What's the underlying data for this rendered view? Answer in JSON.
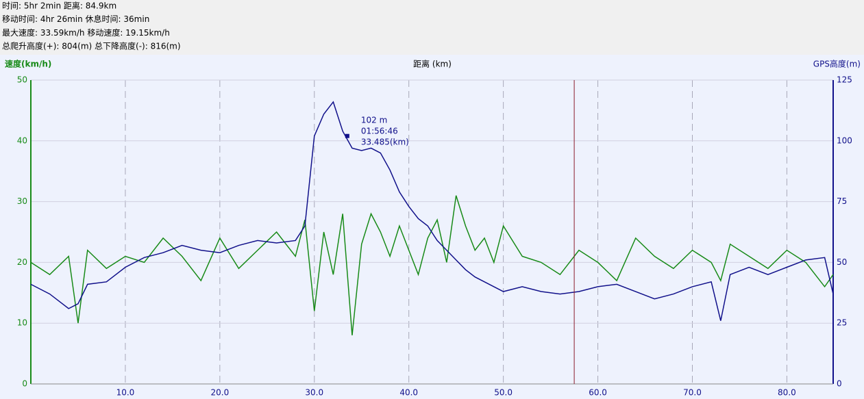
{
  "header": {
    "lines": [
      "时间: 5hr 2min  距离: 84.9km",
      "移动时间: 4hr 26min  休息时间: 36min",
      "最大速度: 33.59km/h  移动速度: 19.15km/h",
      "总爬升高度(+): 804(m)  总下降高度(-): 816(m)"
    ]
  },
  "chart_data": {
    "type": "line",
    "x_label": "距离 (km)",
    "y_label": "速度(km/h)",
    "y2_label": "GPS高度(m)",
    "x": [
      0,
      2,
      4,
      5,
      6,
      8,
      10,
      12,
      14,
      16,
      18,
      20,
      22,
      24,
      26,
      28,
      29,
      30,
      31,
      32,
      33,
      34,
      35,
      36,
      37,
      38,
      39,
      40,
      41,
      42,
      43,
      44,
      45,
      46,
      47,
      48,
      49,
      50,
      52,
      54,
      56,
      58,
      60,
      62,
      64,
      66,
      68,
      70,
      72,
      73,
      74,
      76,
      78,
      80,
      82,
      84,
      84.9
    ],
    "series": [
      {
        "name": "速度(km/h)",
        "color": "#178a17",
        "values": [
          20,
          18,
          21,
          10,
          22,
          19,
          21,
          20,
          24,
          21,
          17,
          24,
          19,
          22,
          25,
          21,
          27,
          12,
          25,
          18,
          28,
          8,
          23,
          28,
          25,
          21,
          26,
          22,
          18,
          24,
          27,
          20,
          31,
          26,
          22,
          24,
          20,
          26,
          21,
          20,
          18,
          22,
          20,
          17,
          24,
          21,
          19,
          22,
          20,
          17,
          23,
          21,
          19,
          22,
          20,
          16,
          18
        ]
      },
      {
        "name": "GPS高度(m)",
        "color": "#10108a",
        "axis": "y2",
        "values": [
          41,
          37,
          31,
          33,
          41,
          42,
          48,
          52,
          54,
          57,
          55,
          54,
          57,
          59,
          58,
          59,
          65,
          102,
          111,
          116,
          104,
          97,
          96,
          97,
          95,
          88,
          79,
          73,
          68,
          65,
          59,
          55,
          51,
          47,
          44,
          42,
          40,
          38,
          40,
          38,
          37,
          38,
          40,
          41,
          38,
          35,
          37,
          40,
          42,
          26,
          45,
          48,
          45,
          48,
          51,
          52,
          37
        ]
      }
    ],
    "xlim": [
      0,
      84.9
    ],
    "ylim": [
      0,
      50
    ],
    "y2lim": [
      0,
      125
    ],
    "xticks": [
      {
        "value": 10,
        "label": "10.0"
      },
      {
        "value": 20,
        "label": "20.0"
      },
      {
        "value": 30,
        "label": "30.0"
      },
      {
        "value": 40,
        "label": "40.0"
      },
      {
        "value": 50,
        "label": "50.0"
      },
      {
        "value": 60,
        "label": "60.0"
      },
      {
        "value": 70,
        "label": "70.0"
      },
      {
        "value": 80,
        "label": "80.0"
      }
    ],
    "yticks": [
      0,
      10,
      20,
      30,
      40,
      50
    ],
    "y2ticks": [
      0,
      25,
      50,
      75,
      100,
      125
    ],
    "grid": true,
    "cursor": 57.5,
    "annotation": {
      "x": 33.485,
      "y": 102,
      "lines": [
        "102 m",
        "01:56:46",
        "33.485(km)"
      ]
    }
  }
}
